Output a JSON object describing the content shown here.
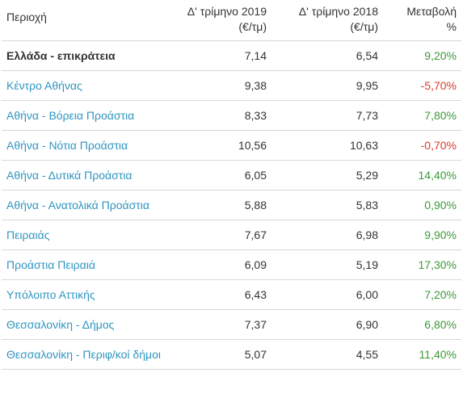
{
  "headers": {
    "region": "Περιοχή",
    "q2019_line1": "Δ' τρίμηνο 2019",
    "q2019_line2": "(€/τμ)",
    "q2018_line1": "Δ' τρίμηνο 2018",
    "q2018_line2": "(€/τμ)",
    "change_line1": "Μεταβολή",
    "change_line2": "%"
  },
  "rows": [
    {
      "region": "Ελλάδα - επικράτεια",
      "q2019": "7,14",
      "q2018": "6,54",
      "change": "9,20%",
      "trend": "positive"
    },
    {
      "region": "Κέντρο Αθήνας",
      "q2019": "9,38",
      "q2018": "9,95",
      "change": "-5,70%",
      "trend": "negative"
    },
    {
      "region": "Αθήνα - Βόρεια Προάστια",
      "q2019": "8,33",
      "q2018": "7,73",
      "change": "7,80%",
      "trend": "positive"
    },
    {
      "region": "Αθήνα - Νότια Προάστια",
      "q2019": "10,56",
      "q2018": "10,63",
      "change": "-0,70%",
      "trend": "negative"
    },
    {
      "region": "Αθήνα - Δυτικά Προάστια",
      "q2019": "6,05",
      "q2018": "5,29",
      "change": "14,40%",
      "trend": "positive"
    },
    {
      "region": "Αθήνα - Ανατολικά Προάστια",
      "q2019": "5,88",
      "q2018": "5,83",
      "change": "0,90%",
      "trend": "positive"
    },
    {
      "region": "Πειραιάς",
      "q2019": "7,67",
      "q2018": "6,98",
      "change": "9,90%",
      "trend": "positive"
    },
    {
      "region": "Προάστια Πειραιά",
      "q2019": "6,09",
      "q2018": "5,19",
      "change": "17,30%",
      "trend": "positive"
    },
    {
      "region": "Υπόλοιπο Αττικής",
      "q2019": "6,43",
      "q2018": "6,00",
      "change": "7,20%",
      "trend": "positive"
    },
    {
      "region": "Θεσσαλονίκη - Δήμος",
      "q2019": "7,37",
      "q2018": "6,90",
      "change": "6,80%",
      "trend": "positive"
    },
    {
      "region": "Θεσσαλονίκη - Περιφ/κοί δήμοι",
      "q2019": "5,07",
      "q2018": "4,55",
      "change": "11,40%",
      "trend": "positive"
    }
  ],
  "colors": {
    "link": "#2f95c0",
    "positive": "#3c9a37",
    "negative": "#d9392c",
    "text": "#333333",
    "rule": "#d8d8d8"
  }
}
